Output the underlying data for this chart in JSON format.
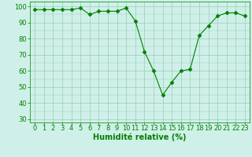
{
  "x": [
    0,
    1,
    2,
    3,
    4,
    5,
    6,
    7,
    8,
    9,
    10,
    11,
    12,
    13,
    14,
    15,
    16,
    17,
    18,
    19,
    20,
    21,
    22,
    23
  ],
  "y": [
    98,
    98,
    98,
    98,
    98,
    99,
    95,
    97,
    97,
    97,
    99,
    91,
    72,
    60,
    45,
    53,
    60,
    61,
    82,
    88,
    94,
    96,
    96,
    94
  ],
  "line_color": "#008000",
  "marker": "D",
  "marker_size": 2.5,
  "background_color": "#cff0e8",
  "grid_color": "#99ccbb",
  "xlabel": "Humidité relative (%)",
  "xlabel_color": "#008000",
  "xlabel_fontsize": 7,
  "tick_color": "#008000",
  "tick_fontsize": 6,
  "ylim": [
    28,
    103
  ],
  "xlim": [
    -0.5,
    23.5
  ],
  "yticks": [
    30,
    40,
    50,
    60,
    70,
    80,
    90,
    100
  ],
  "xticks": [
    0,
    1,
    2,
    3,
    4,
    5,
    6,
    7,
    8,
    9,
    10,
    11,
    12,
    13,
    14,
    15,
    16,
    17,
    18,
    19,
    20,
    21,
    22,
    23
  ]
}
